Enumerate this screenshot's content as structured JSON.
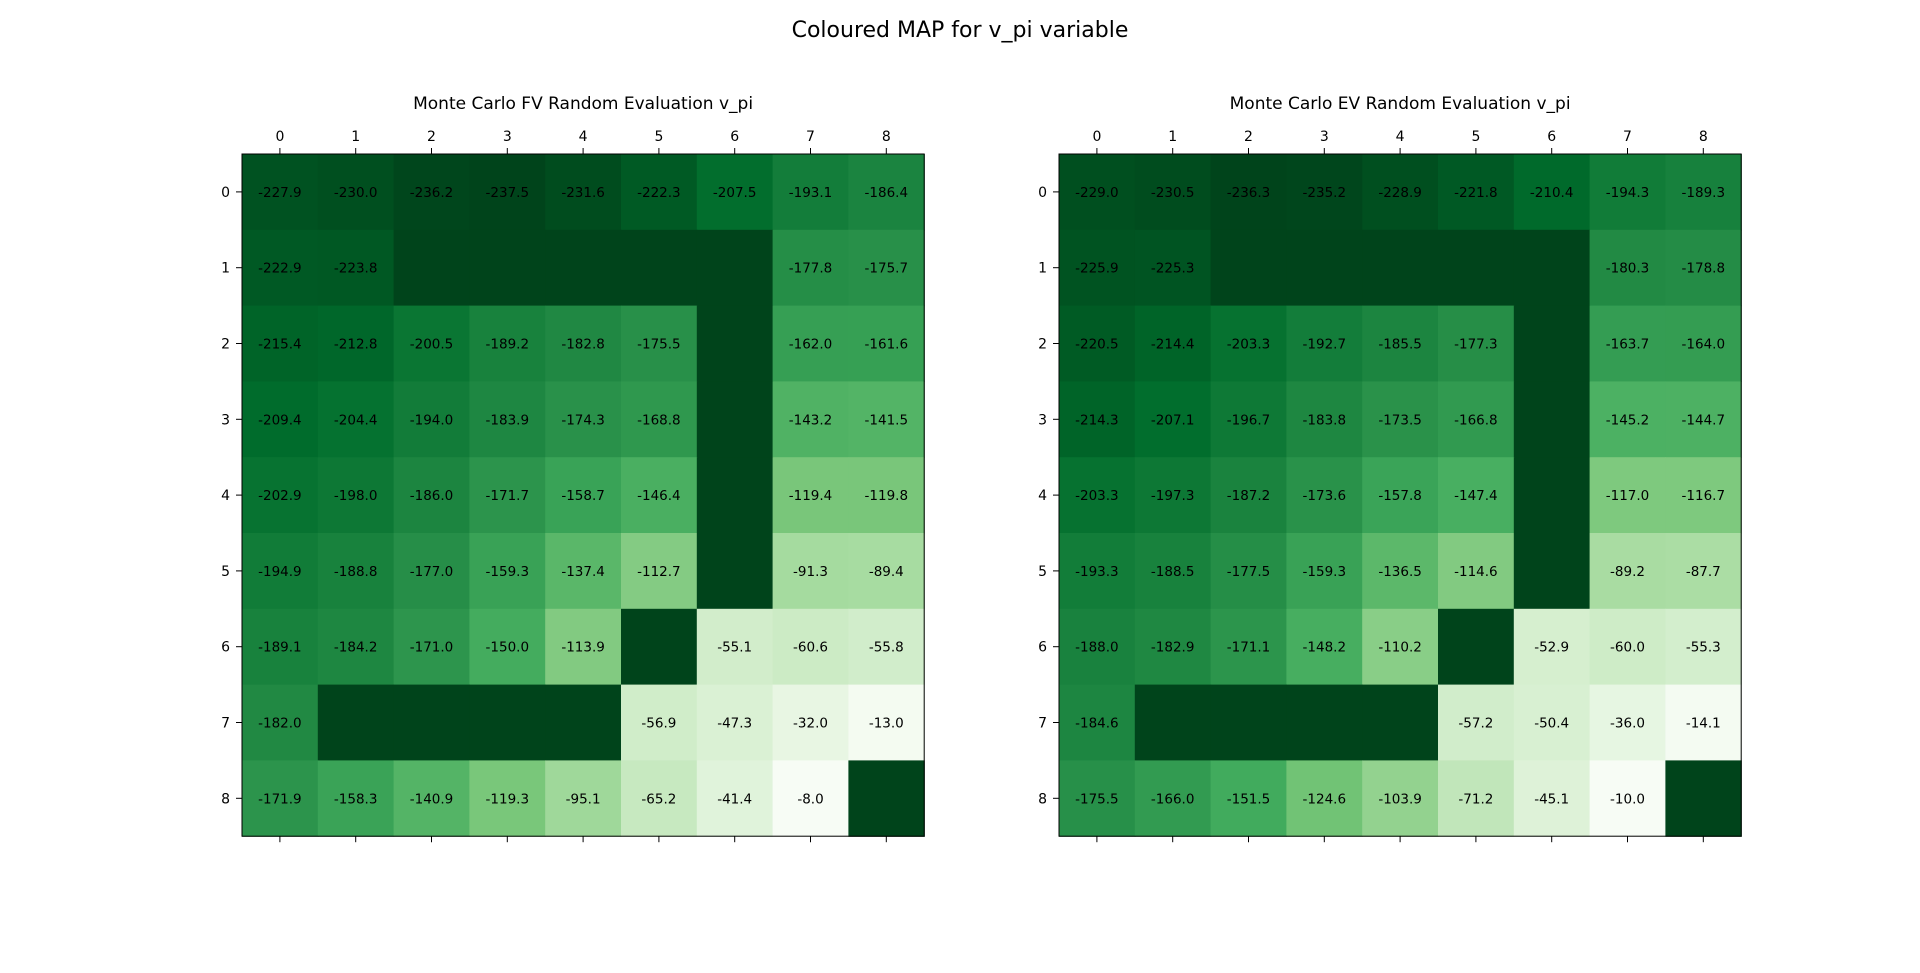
{
  "figure": {
    "title": "Coloured MAP for v_pi variable"
  },
  "chart_data": [
    {
      "type": "heatmap",
      "title": "Monte Carlo FV Random Evaluation v_pi",
      "x_ticks": [
        "0",
        "1",
        "2",
        "3",
        "4",
        "5",
        "6",
        "7",
        "8"
      ],
      "y_ticks": [
        "0",
        "1",
        "2",
        "3",
        "4",
        "5",
        "6",
        "7",
        "8"
      ],
      "colormap": "Greens_r",
      "blank_color": "#00441b",
      "values": [
        [
          -227.9,
          -230.0,
          -236.2,
          -237.5,
          -231.6,
          -222.3,
          -207.5,
          -193.1,
          -186.4
        ],
        [
          -222.9,
          -223.8,
          null,
          null,
          null,
          null,
          null,
          -177.8,
          -175.7
        ],
        [
          -215.4,
          -212.8,
          -200.5,
          -189.2,
          -182.8,
          -175.5,
          null,
          -162.0,
          -161.6
        ],
        [
          -209.4,
          -204.4,
          -194.0,
          -183.9,
          -174.3,
          -168.8,
          null,
          -143.2,
          -141.5
        ],
        [
          -202.9,
          -198.0,
          -186.0,
          -171.7,
          -158.7,
          -146.4,
          null,
          -119.4,
          -119.8
        ],
        [
          -194.9,
          -188.8,
          -177.0,
          -159.3,
          -137.4,
          -112.7,
          null,
          -91.3,
          -89.4
        ],
        [
          -189.1,
          -184.2,
          -171.0,
          -150.0,
          -113.9,
          null,
          -55.1,
          -60.6,
          -55.8
        ],
        [
          -182.0,
          null,
          null,
          null,
          null,
          -56.9,
          -47.3,
          -32.0,
          -13.0
        ],
        [
          -171.9,
          -158.3,
          -140.9,
          -119.3,
          -95.1,
          -65.2,
          -41.4,
          -8.0,
          null
        ]
      ],
      "labels": [
        [
          "-227.9",
          "-230.0",
          "-236.2",
          "-237.5",
          "-231.6",
          "-222.3",
          "-207.5",
          "-193.1",
          "-186.4"
        ],
        [
          "-222.9",
          "-223.8",
          "",
          "",
          "",
          "",
          "",
          "-177.8",
          "-175.7"
        ],
        [
          "-215.4",
          "-212.8",
          "-200.5",
          "-189.2",
          "-182.8",
          "-175.5",
          "",
          "-162.0",
          "-161.6"
        ],
        [
          "-209.4",
          "-204.4",
          "-194.0",
          "-183.9",
          "-174.3",
          "-168.8",
          "",
          "-143.2",
          "-141.5"
        ],
        [
          "-202.9",
          "-198.0",
          "-186.0",
          "-171.7",
          "-158.7",
          "-146.4",
          "",
          "-119.4",
          "-119.8"
        ],
        [
          "-194.9",
          "-188.8",
          "-177.0",
          "-159.3",
          "-137.4",
          "-112.7",
          "",
          "-91.3",
          "-89.4"
        ],
        [
          "-189.1",
          "-184.2",
          "-171.0",
          "-150.0",
          "-113.9",
          "",
          "-55.1",
          "-60.6",
          "-55.8"
        ],
        [
          "-182.0",
          "",
          "",
          "",
          "",
          "-56.9",
          "-47.3",
          "-32.0",
          "-13.0"
        ],
        [
          "-171.9",
          "-158.3",
          "-140.9",
          "-119.3",
          "-95.1",
          "-65.2",
          "-41.4",
          "-8.0",
          ""
        ]
      ]
    },
    {
      "type": "heatmap",
      "title": "Monte Carlo EV Random Evaluation v_pi",
      "x_ticks": [
        "0",
        "1",
        "2",
        "3",
        "4",
        "5",
        "6",
        "7",
        "8"
      ],
      "y_ticks": [
        "0",
        "1",
        "2",
        "3",
        "4",
        "5",
        "6",
        "7",
        "8"
      ],
      "colormap": "Greens_r",
      "blank_color": "#00441b",
      "values": [
        [
          -229.0,
          -230.5,
          -236.3,
          -235.2,
          -228.9,
          -221.8,
          -210.4,
          -194.3,
          -189.3
        ],
        [
          -225.9,
          -225.3,
          null,
          null,
          null,
          null,
          null,
          -180.3,
          -178.8
        ],
        [
          -220.5,
          -214.4,
          -203.3,
          -192.7,
          -185.5,
          -177.3,
          null,
          -163.7,
          -164.0
        ],
        [
          -214.3,
          -207.1,
          -196.7,
          -183.8,
          -173.5,
          -166.8,
          null,
          -145.2,
          -144.7
        ],
        [
          -203.3,
          -197.3,
          -187.2,
          -173.6,
          -157.8,
          -147.4,
          null,
          -117.0,
          -116.7
        ],
        [
          -193.3,
          -188.5,
          -177.5,
          -159.3,
          -136.5,
          -114.6,
          null,
          -89.2,
          -87.7
        ],
        [
          -188.0,
          -182.9,
          -171.1,
          -148.2,
          -110.2,
          null,
          -52.9,
          -60.0,
          -55.3
        ],
        [
          -184.6,
          null,
          null,
          null,
          null,
          -57.2,
          -50.4,
          -36.0,
          -14.1
        ],
        [
          -175.5,
          -166.0,
          -151.5,
          -124.6,
          -103.9,
          -71.2,
          -45.1,
          -10.0,
          null
        ]
      ],
      "labels": [
        [
          "-229.0",
          "-230.5",
          "-236.3",
          "-235.2",
          "-228.9",
          "-221.8",
          "-210.4",
          "-194.3",
          "-189.3"
        ],
        [
          "-225.9",
          "-225.3",
          "",
          "",
          "",
          "",
          "",
          "-180.3",
          "-178.8"
        ],
        [
          "-220.5",
          "-214.4",
          "-203.3",
          "-192.7",
          "-185.5",
          "-177.3",
          "",
          "-163.7",
          "-164.0"
        ],
        [
          "-214.3",
          "-207.1",
          "-196.7",
          "-183.8",
          "-173.5",
          "-166.8",
          "",
          "-145.2",
          "-144.7"
        ],
        [
          "-203.3",
          "-197.3",
          "-187.2",
          "-173.6",
          "-157.8",
          "-147.4",
          "",
          "-117.0",
          "-116.7"
        ],
        [
          "-193.3",
          "-188.5",
          "-177.5",
          "-159.3",
          "-136.5",
          "-114.6",
          "",
          "-89.2",
          "-87.7"
        ],
        [
          "-188.0",
          "-182.9",
          "-171.1",
          "-148.2",
          "-110.2",
          "",
          "-52.9",
          "-60.0",
          "-55.3"
        ],
        [
          "-184.6",
          "",
          "",
          "",
          "",
          "-57.2",
          "-50.4",
          "-36.0",
          "-14.1"
        ],
        [
          "-175.5",
          "-166.0",
          "-151.5",
          "-124.6",
          "-103.9",
          "-71.2",
          "-45.1",
          "-10.0",
          ""
        ]
      ]
    }
  ]
}
